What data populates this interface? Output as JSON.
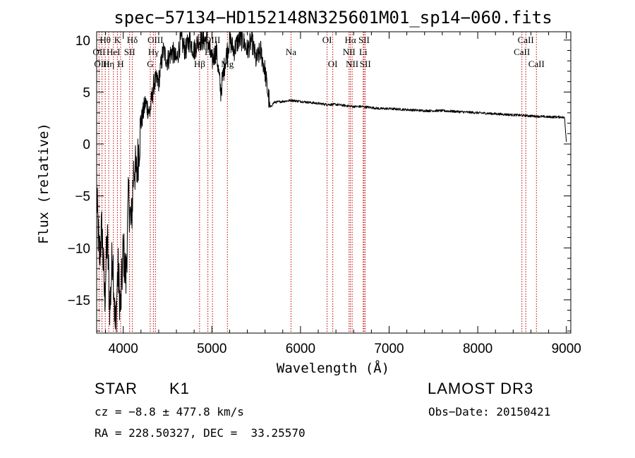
{
  "chart_data": {
    "type": "line",
    "title": "spec−57134−HD152148N325601M01_sp14−060.fits",
    "xlabel": "Wavelength (Å)",
    "ylabel": "Flux (relative)",
    "xlim": [
      3700,
      9050
    ],
    "ylim": [
      -18.2,
      10.8
    ],
    "xticks": [
      4000,
      5000,
      6000,
      7000,
      8000,
      9000
    ],
    "yticks": [
      -15,
      -10,
      -5,
      0,
      5,
      10
    ],
    "ytick_labels": [
      "−15",
      "−10",
      "−5",
      "0",
      "5",
      "10"
    ],
    "series": [
      {
        "name": "flux",
        "x": [
          3700,
          3730,
          3760,
          3790,
          3820,
          3850,
          3880,
          3910,
          3940,
          3970,
          4000,
          4030,
          4060,
          4090,
          4120,
          4150,
          4200,
          4250,
          4300,
          4350,
          4400,
          4450,
          4500,
          4550,
          4600,
          4650,
          4700,
          4750,
          4800,
          4850,
          4900,
          4950,
          5000,
          5050,
          5100,
          5150,
          5200,
          5250,
          5300,
          5350,
          5400,
          5450,
          5500,
          5550,
          5600,
          5630,
          5660,
          5700,
          5800,
          5900,
          6000,
          6100,
          6200,
          6300,
          6400,
          6500,
          6600,
          6700,
          6800,
          6900,
          7000,
          7200,
          7400,
          7600,
          7800,
          8000,
          8200,
          8400,
          8600,
          8800,
          8950,
          8980,
          9000
        ],
        "y": [
          -5,
          -11,
          -8,
          -15,
          -9,
          -16,
          -10,
          -18,
          -12,
          -16,
          -10,
          -13,
          -5,
          -8,
          -2,
          -3,
          2,
          4,
          3,
          6,
          6,
          9,
          8,
          9,
          8,
          10,
          9,
          10,
          9,
          10,
          10,
          10,
          8,
          9,
          5,
          8,
          10,
          9,
          10,
          10,
          9,
          10,
          8,
          9,
          7,
          5,
          3.5,
          4,
          4.1,
          4.2,
          4.1,
          4.0,
          3.9,
          3.8,
          3.8,
          3.7,
          3.6,
          3.6,
          3.5,
          3.4,
          3.4,
          3.3,
          3.2,
          3.2,
          3.1,
          3.0,
          2.9,
          2.8,
          2.7,
          2.6,
          2.6,
          2.5,
          0.2
        ]
      }
    ],
    "line_markers": [
      {
        "label": "Hθ",
        "x": 3797,
        "row": 0
      },
      {
        "label": "K",
        "x": 3934,
        "row": 0
      },
      {
        "label": "Hδ",
        "x": 4102,
        "row": 0
      },
      {
        "label": "OIII",
        "x": 4363,
        "row": 0
      },
      {
        "label": "OIII",
        "x": 5007,
        "row": 0
      },
      {
        "label": "OI",
        "x": 6300,
        "row": 0
      },
      {
        "label": "Hα",
        "x": 6563,
        "row": 0
      },
      {
        "label": "SII",
        "x": 6717,
        "row": 0
      },
      {
        "label": "CaII",
        "x": 8542,
        "row": 0
      },
      {
        "label": "OII",
        "x": 3727,
        "row": 1
      },
      {
        "label": "HeI",
        "x": 3889,
        "row": 1
      },
      {
        "label": "SII",
        "x": 4072,
        "row": 1
      },
      {
        "label": "Hγ",
        "x": 4340,
        "row": 1
      },
      {
        "label": "H",
        "x": 4955,
        "row": 1
      },
      {
        "label": "Na",
        "x": 5893,
        "row": 1
      },
      {
        "label": "NII",
        "x": 6548,
        "row": 1
      },
      {
        "label": "Li",
        "x": 6708,
        "row": 1
      },
      {
        "label": "CaII",
        "x": 8498,
        "row": 1
      },
      {
        "label": "OIII",
        "x": 3760,
        "row": 2
      },
      {
        "label": "Hη",
        "x": 3836,
        "row": 2
      },
      {
        "label": "H",
        "x": 3970,
        "row": 2
      },
      {
        "label": "G",
        "x": 4305,
        "row": 2
      },
      {
        "label": "Hβ",
        "x": 4861,
        "row": 2
      },
      {
        "label": "Mg",
        "x": 5175,
        "row": 2
      },
      {
        "label": "OI",
        "x": 6364,
        "row": 2
      },
      {
        "label": "NII",
        "x": 6583,
        "row": 2
      },
      {
        "label": "SII",
        "x": 6731,
        "row": 2
      },
      {
        "label": "CaII",
        "x": 8662,
        "row": 2
      }
    ]
  },
  "info": {
    "object_class": "STAR",
    "subclass": "K1",
    "survey": "LAMOST DR3",
    "cz": "cz = −8.8 ± 477.8 km/s",
    "obs_date": "Obs−Date: 20150421",
    "coords": "RA = 228.50327, DEC =  33.25570"
  },
  "colors": {
    "marker_line": "#c00000",
    "data_line": "#000000",
    "axis": "#000000"
  }
}
